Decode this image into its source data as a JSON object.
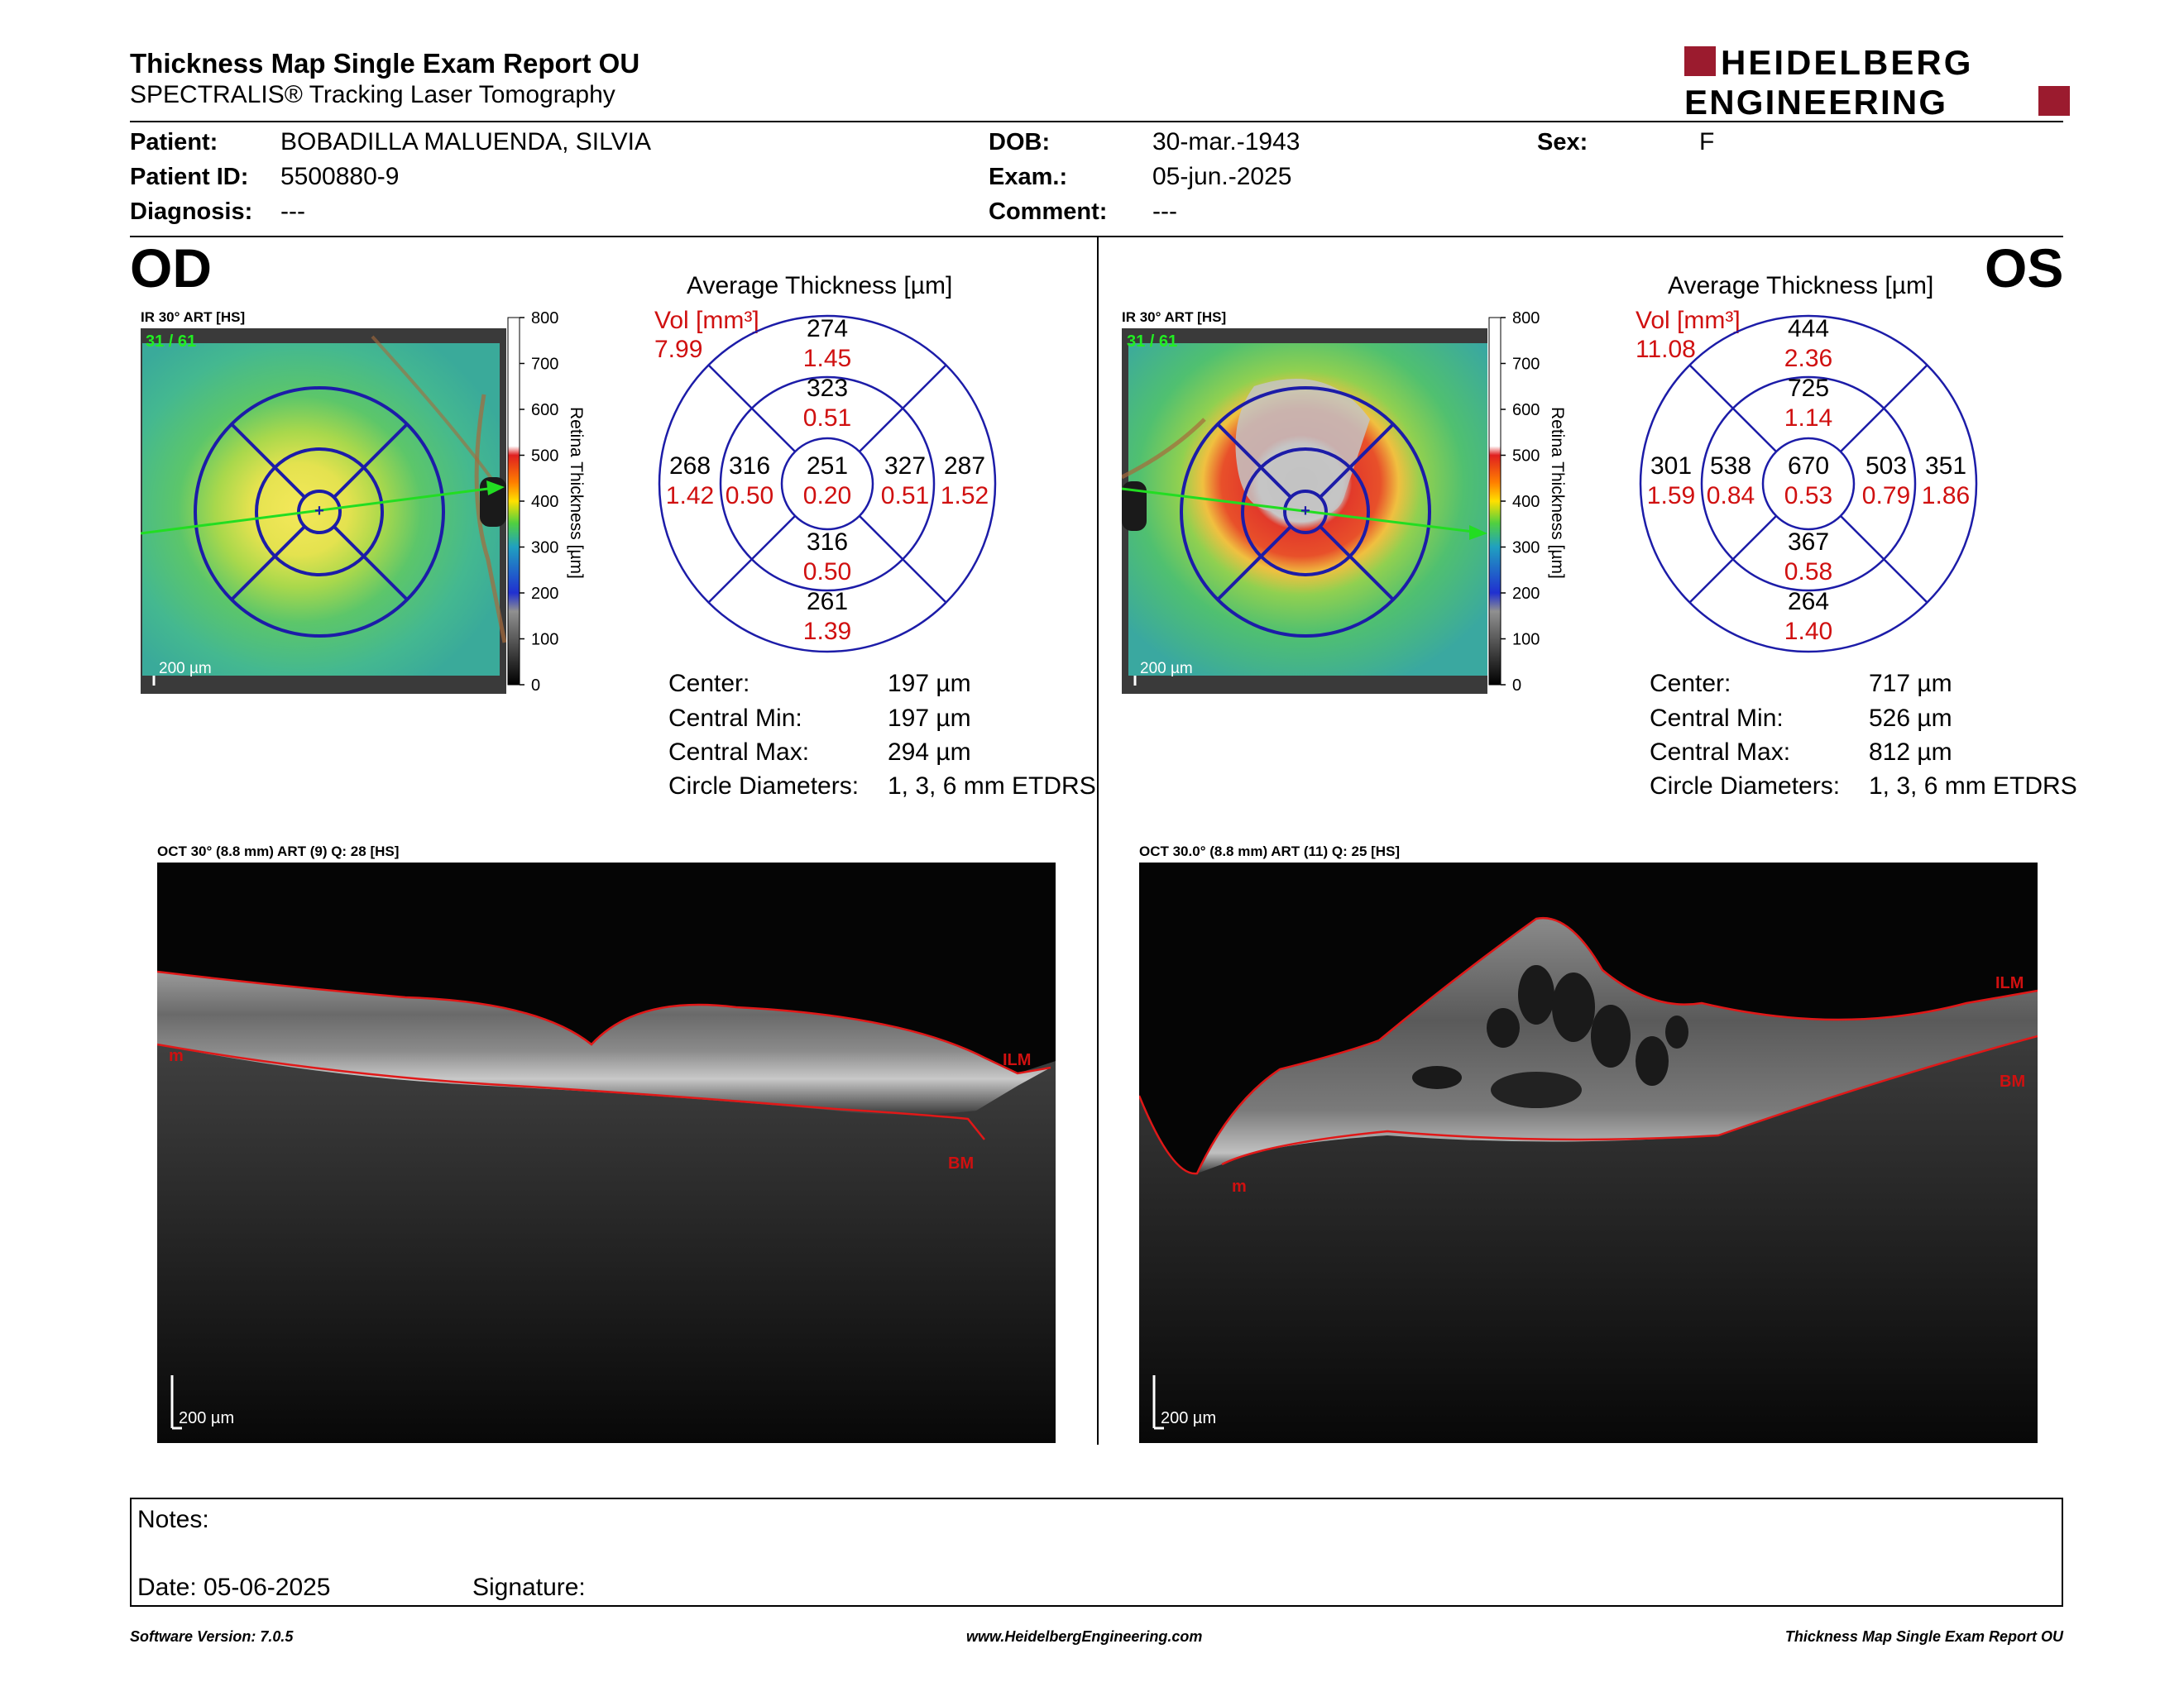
{
  "header": {
    "title": "Thickness Map Single Exam Report OU",
    "subtitle": "SPECTRALIS® Tracking Laser Tomography",
    "logo_line1": "HEIDELBERG",
    "logo_line2": "ENGINEERING"
  },
  "patient": {
    "patient_label": "Patient:",
    "patient_value": "BOBADILLA MALUENDA, SILVIA",
    "id_label": "Patient ID:",
    "id_value": "5500880-9",
    "diagnosis_label": "Diagnosis:",
    "diagnosis_value": "---",
    "dob_label": "DOB:",
    "dob_value": "30-mar.-1943",
    "exam_label": "Exam.:",
    "exam_value": "05-jun.-2025",
    "comment_label": "Comment:",
    "comment_value": "---",
    "sex_label": "Sex:",
    "sex_value": "F"
  },
  "scale": {
    "ticks": [
      "800",
      "700",
      "600",
      "500",
      "400",
      "300",
      "200",
      "100",
      "0"
    ],
    "axis_label": "Retina Thickness [µm]"
  },
  "od": {
    "eye_label": "OD",
    "ir_label": "IR 30° ART [HS]",
    "frame_count": "31 / 61",
    "ir_scale": "200 µm",
    "avg_title": "Average Thickness [µm]",
    "vol_label": "Vol [mm³]",
    "vol_total": "7.99",
    "grid": {
      "outer_sup": {
        "t": "274",
        "v": "1.45"
      },
      "inner_sup": {
        "t": "323",
        "v": "0.51"
      },
      "outer_temp": {
        "t": "268",
        "v": "1.42"
      },
      "inner_temp": {
        "t": "316",
        "v": "0.50"
      },
      "center": {
        "t": "251",
        "v": "0.20"
      },
      "inner_nas": {
        "t": "327",
        "v": "0.51"
      },
      "outer_nas": {
        "t": "287",
        "v": "1.52"
      },
      "inner_inf": {
        "t": "316",
        "v": "0.50"
      },
      "outer_inf": {
        "t": "261",
        "v": "1.39"
      }
    },
    "stats": {
      "center_label": "Center:",
      "center_value": "197 µm",
      "min_label": "Central Min:",
      "min_value": "197 µm",
      "max_label": "Central Max:",
      "max_value": "294 µm",
      "diam_label": "Circle Diameters:",
      "diam_value": "1, 3, 6 mm ETDRS"
    },
    "oct_label": "OCT 30° (8.8 mm) ART (9) Q: 28 [HS]",
    "oct_scale": "200 µm",
    "ilm": "ILM",
    "bm": "BM",
    "m": "m"
  },
  "os": {
    "eye_label": "OS",
    "ir_label": "IR 30° ART [HS]",
    "frame_count": "31 / 61",
    "ir_scale": "200 µm",
    "avg_title": "Average Thickness [µm]",
    "vol_label": "Vol [mm³]",
    "vol_total": "11.08",
    "grid": {
      "outer_sup": {
        "t": "444",
        "v": "2.36"
      },
      "inner_sup": {
        "t": "725",
        "v": "1.14"
      },
      "outer_temp": {
        "t": "301",
        "v": "1.59"
      },
      "inner_temp": {
        "t": "538",
        "v": "0.84"
      },
      "center": {
        "t": "670",
        "v": "0.53"
      },
      "inner_nas": {
        "t": "503",
        "v": "0.79"
      },
      "outer_nas": {
        "t": "351",
        "v": "1.86"
      },
      "inner_inf": {
        "t": "367",
        "v": "0.58"
      },
      "outer_inf": {
        "t": "264",
        "v": "1.40"
      }
    },
    "stats": {
      "center_label": "Center:",
      "center_value": "717 µm",
      "min_label": "Central Min:",
      "min_value": "526 µm",
      "max_label": "Central Max:",
      "max_value": "812 µm",
      "diam_label": "Circle Diameters:",
      "diam_value": "1, 3, 6 mm ETDRS"
    },
    "oct_label": "OCT 30.0° (8.8 mm) ART (11) Q: 25 [HS]",
    "oct_scale": "200 µm",
    "ilm": "ILM",
    "bm": "BM",
    "m": "m"
  },
  "notes": {
    "notes_label": "Notes:",
    "date_label": "Date: 05-06-2025",
    "signature_label": "Signature:"
  },
  "footer": {
    "left": "Software Version: 7.0.5",
    "center": "www.HeidelbergEngineering.com",
    "right": "Thickness Map Single Exam Report OU"
  },
  "colors": {
    "grid_blue": "#1c1ca8",
    "value_red": "#d01010",
    "brand_red": "#9b1b2e",
    "scan_line_green": "#22dd22",
    "frame_green": "#22ee22"
  }
}
